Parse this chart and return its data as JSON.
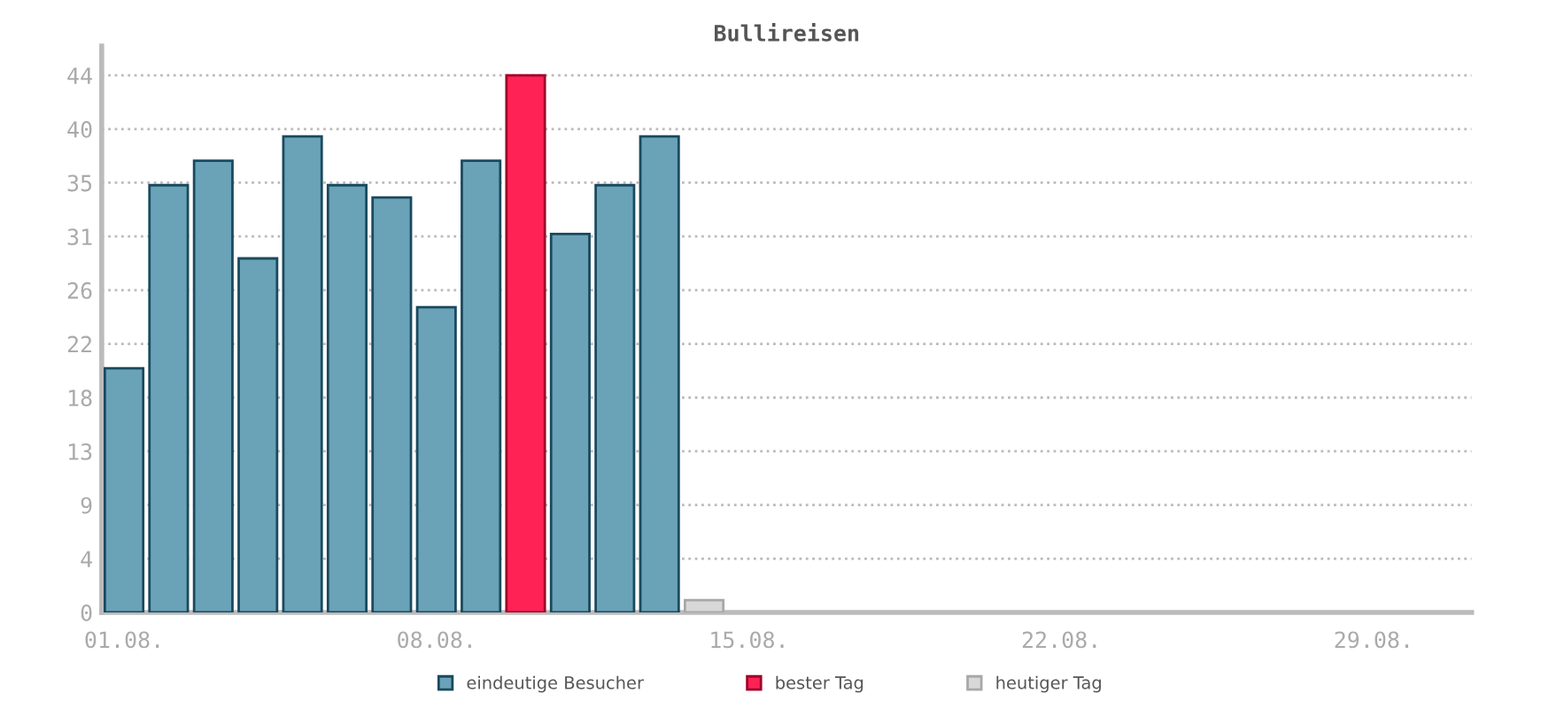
{
  "chart_data": {
    "type": "bar",
    "title": "Bullireisen",
    "categories": [
      "01.08.",
      null,
      null,
      null,
      null,
      null,
      null,
      "08.08.",
      null,
      null,
      null,
      null,
      null,
      null,
      "15.08.",
      null,
      null,
      null,
      null,
      null,
      null,
      "22.08.",
      null,
      null,
      null,
      null,
      null,
      null,
      "29.08.",
      null,
      null
    ],
    "series": [
      {
        "name": "eindeutige Besucher",
        "color": "#6aa2b8",
        "values": [
          20,
          35,
          37,
          29,
          39,
          35,
          34,
          25,
          37,
          null,
          31,
          35,
          39,
          null,
          null,
          null,
          null,
          null,
          null,
          null,
          null,
          null,
          null,
          null,
          null,
          null,
          null,
          null,
          null,
          null,
          null
        ]
      },
      {
        "name": "bester Tag",
        "color": "#ff2255",
        "values": [
          null,
          null,
          null,
          null,
          null,
          null,
          null,
          null,
          null,
          44,
          null,
          null,
          null,
          null,
          null,
          null,
          null,
          null,
          null,
          null,
          null,
          null,
          null,
          null,
          null,
          null,
          null,
          null,
          null,
          null,
          null
        ]
      },
      {
        "name": "heutiger Tag",
        "color": "#d8d8d8",
        "values": [
          null,
          null,
          null,
          null,
          null,
          null,
          null,
          null,
          null,
          null,
          null,
          null,
          null,
          1,
          null,
          null,
          null,
          null,
          null,
          null,
          null,
          null,
          null,
          null,
          null,
          null,
          null,
          null,
          null,
          null,
          null
        ]
      }
    ],
    "ylim": [
      0,
      46.4
    ],
    "yticks": [
      0,
      {
        "value": 4.4,
        "label": "4"
      },
      {
        "value": 8.8,
        "label": "9"
      },
      {
        "value": 13.2,
        "label": "13"
      },
      {
        "value": 17.6,
        "label": "18"
      },
      {
        "value": 22,
        "label": "22"
      },
      {
        "value": 26.4,
        "label": "26"
      },
      {
        "value": 30.8,
        "label": "31"
      },
      {
        "value": 35.2,
        "label": "35"
      },
      {
        "value": 39.6,
        "label": "40"
      },
      44
    ],
    "grid": "y",
    "legend": "bottom"
  }
}
